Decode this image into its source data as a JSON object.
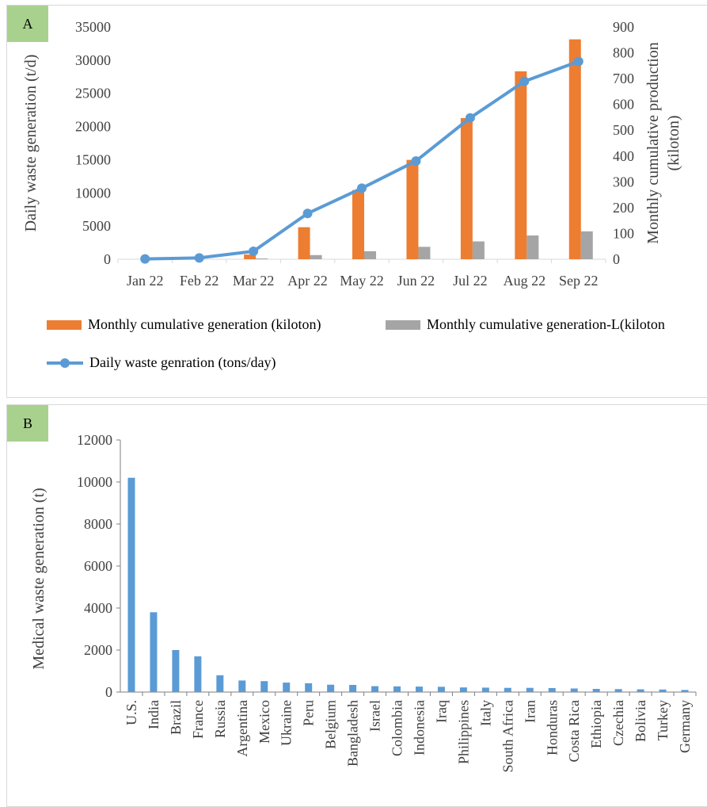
{
  "colors": {
    "orange": "#ed7d31",
    "gray": "#a5a5a5",
    "blue": "#5b9bd5",
    "panel_tag": "#a9d18e"
  },
  "panels": {
    "a": {
      "label": "A",
      "legend": {
        "cumulative": "Monthly cumulative generation (kiloton)",
        "cumulative_l": "Monthly cumulative generation-L(kiloton",
        "daily": "Daily waste genration (tons/day)"
      }
    },
    "b": {
      "label": "B"
    }
  },
  "chart_data": [
    {
      "type": "bar",
      "subtype": "combo bar + line, dual axis",
      "categories": [
        "Jan 22",
        "Feb 22",
        "Mar 22",
        "Apr 22",
        "May 22",
        "Jun 22",
        "Jul 22",
        "Aug 22",
        "Sep 22"
      ],
      "ylabel": "Daily waste generation (t/d)",
      "y2label": "Monthly cumulative production (kiloton)",
      "ylabel2_lines": [
        "Monthly cumulative production",
        "(kiloton)"
      ],
      "ylim": [
        0,
        35000
      ],
      "y2lim": [
        0,
        900
      ],
      "yticks": [
        0,
        5000,
        10000,
        15000,
        20000,
        25000,
        30000,
        35000
      ],
      "y2ticks": [
        0,
        100,
        200,
        300,
        400,
        500,
        600,
        700,
        800,
        900
      ],
      "series": [
        {
          "name": "Monthly cumulative generation (kiloton)",
          "type": "bar",
          "axis": "right",
          "color": "#ed7d31",
          "values": [
            0,
            0,
            18,
            124,
            268,
            385,
            547,
            728,
            852
          ]
        },
        {
          "name": "Monthly cumulative generation-L(kiloton",
          "type": "bar",
          "axis": "right",
          "color": "#a5a5a5",
          "values": [
            0,
            0,
            3,
            16,
            31,
            48,
            69,
            92,
            108
          ]
        },
        {
          "name": "Daily waste genration (tons/day)",
          "type": "line",
          "axis": "left",
          "color": "#5b9bd5",
          "values": [
            50,
            200,
            1200,
            6900,
            10700,
            14800,
            21300,
            26800,
            29800
          ]
        }
      ],
      "grid": false,
      "legend_position": "bottom"
    },
    {
      "type": "bar",
      "categories": [
        "U.S.",
        "India",
        "Brazil",
        "France",
        "Russia",
        "Argentina",
        "Mexico",
        "Ukraine",
        "Peru",
        "Belgium",
        "Bangladesh",
        "Israel",
        "Colombia",
        "Indonesia",
        "Iraq",
        "Philippines",
        "Italy",
        "South Africa",
        "Iran",
        "Honduras",
        "Costa Rica",
        "Ethiopia",
        "Czechia",
        "Bolivia",
        "Turkey",
        "Germany"
      ],
      "values": [
        10200,
        3800,
        2000,
        1700,
        800,
        550,
        520,
        450,
        420,
        350,
        340,
        280,
        270,
        260,
        250,
        220,
        210,
        200,
        200,
        190,
        170,
        150,
        140,
        130,
        120,
        100
      ],
      "color": "#5b9bd5",
      "ylabel": "Medical waste generation (t)",
      "ylim": [
        0,
        12000
      ],
      "yticks": [
        0,
        2000,
        4000,
        6000,
        8000,
        10000,
        12000
      ],
      "grid": false
    }
  ]
}
